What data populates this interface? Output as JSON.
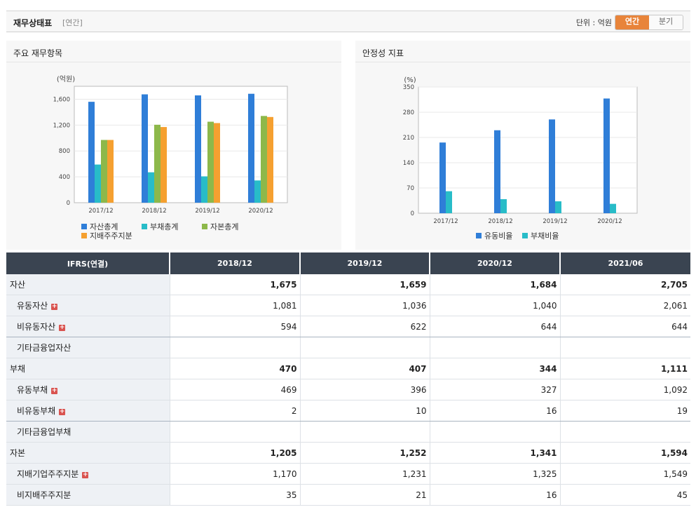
{
  "header": {
    "title": "재무상태표",
    "period": "[연간]",
    "unit": "단위 : 억원",
    "toggle_annual": "연간",
    "toggle_quarter": "분기"
  },
  "panels": {
    "left_title": "주요 재무항목",
    "right_title": "안정성 지표"
  },
  "chart_data": [
    {
      "type": "bar",
      "title": "주요 재무항목",
      "ylabel": "(억원)",
      "categories": [
        "2017/12",
        "2018/12",
        "2019/12",
        "2020/12"
      ],
      "ylim": [
        0,
        1800
      ],
      "yticks": [
        0,
        400,
        800,
        1200,
        1600
      ],
      "ytick_labels": [
        "0",
        "400",
        "800",
        "1,200",
        "1,600"
      ],
      "grid": true,
      "legend": "bottom",
      "series": [
        {
          "name": "자산총계",
          "color": "#2f7ed8",
          "values": [
            1560,
            1675,
            1659,
            1684
          ]
        },
        {
          "name": "부채총계",
          "color": "#28bcc8",
          "values": [
            590,
            470,
            407,
            344
          ]
        },
        {
          "name": "자본총계",
          "color": "#8db84a",
          "values": [
            970,
            1205,
            1252,
            1341
          ]
        },
        {
          "name": "지배주주지분",
          "color": "#f5a030",
          "values": [
            970,
            1170,
            1231,
            1325
          ]
        }
      ]
    },
    {
      "type": "bar",
      "title": "안정성 지표",
      "ylabel": "(%)",
      "categories": [
        "2017/12",
        "2018/12",
        "2019/12",
        "2020/12"
      ],
      "ylim": [
        0,
        350
      ],
      "yticks": [
        0,
        70,
        140,
        210,
        280,
        350
      ],
      "ytick_labels": [
        "0",
        "70",
        "140",
        "210",
        "280",
        "350"
      ],
      "grid": true,
      "legend": "bottom",
      "series": [
        {
          "name": "유동비율",
          "color": "#2f7ed8",
          "values": [
            196,
            230,
            260,
            318
          ]
        },
        {
          "name": "부채비율",
          "color": "#28bcc8",
          "values": [
            61,
            39,
            33,
            26
          ]
        }
      ]
    }
  ],
  "table": {
    "header": [
      "IFRS(연결)",
      "2018/12",
      "2019/12",
      "2020/12",
      "2021/06"
    ],
    "rows": [
      {
        "label": "자산",
        "sub": false,
        "plus": false,
        "main": true,
        "values": [
          "1,675",
          "1,659",
          "1,684",
          "2,705"
        ]
      },
      {
        "label": "유동자산",
        "sub": true,
        "plus": true,
        "main": false,
        "values": [
          "1,081",
          "1,036",
          "1,040",
          "2,061"
        ]
      },
      {
        "label": "비유동자산",
        "sub": true,
        "plus": true,
        "main": false,
        "values": [
          "594",
          "622",
          "644",
          "644"
        ]
      },
      {
        "label": "기타금융업자산",
        "sub": true,
        "plus": false,
        "main": false,
        "values": [
          "",
          "",
          "",
          ""
        ]
      },
      {
        "label": "부채",
        "sub": false,
        "plus": false,
        "main": true,
        "values": [
          "470",
          "407",
          "344",
          "1,111"
        ]
      },
      {
        "label": "유동부채",
        "sub": true,
        "plus": true,
        "main": false,
        "values": [
          "469",
          "396",
          "327",
          "1,092"
        ]
      },
      {
        "label": "비유동부채",
        "sub": true,
        "plus": true,
        "main": false,
        "values": [
          "2",
          "10",
          "16",
          "19"
        ]
      },
      {
        "label": "기타금융업부채",
        "sub": true,
        "plus": false,
        "main": false,
        "values": [
          "",
          "",
          "",
          ""
        ]
      },
      {
        "label": "자본",
        "sub": false,
        "plus": false,
        "main": true,
        "values": [
          "1,205",
          "1,252",
          "1,341",
          "1,594"
        ]
      },
      {
        "label": "지배기업주주지분",
        "sub": true,
        "plus": true,
        "main": false,
        "values": [
          "1,170",
          "1,231",
          "1,325",
          "1,549"
        ]
      },
      {
        "label": "비지배주주지분",
        "sub": true,
        "plus": false,
        "main": false,
        "values": [
          "35",
          "21",
          "16",
          "45"
        ]
      }
    ]
  }
}
